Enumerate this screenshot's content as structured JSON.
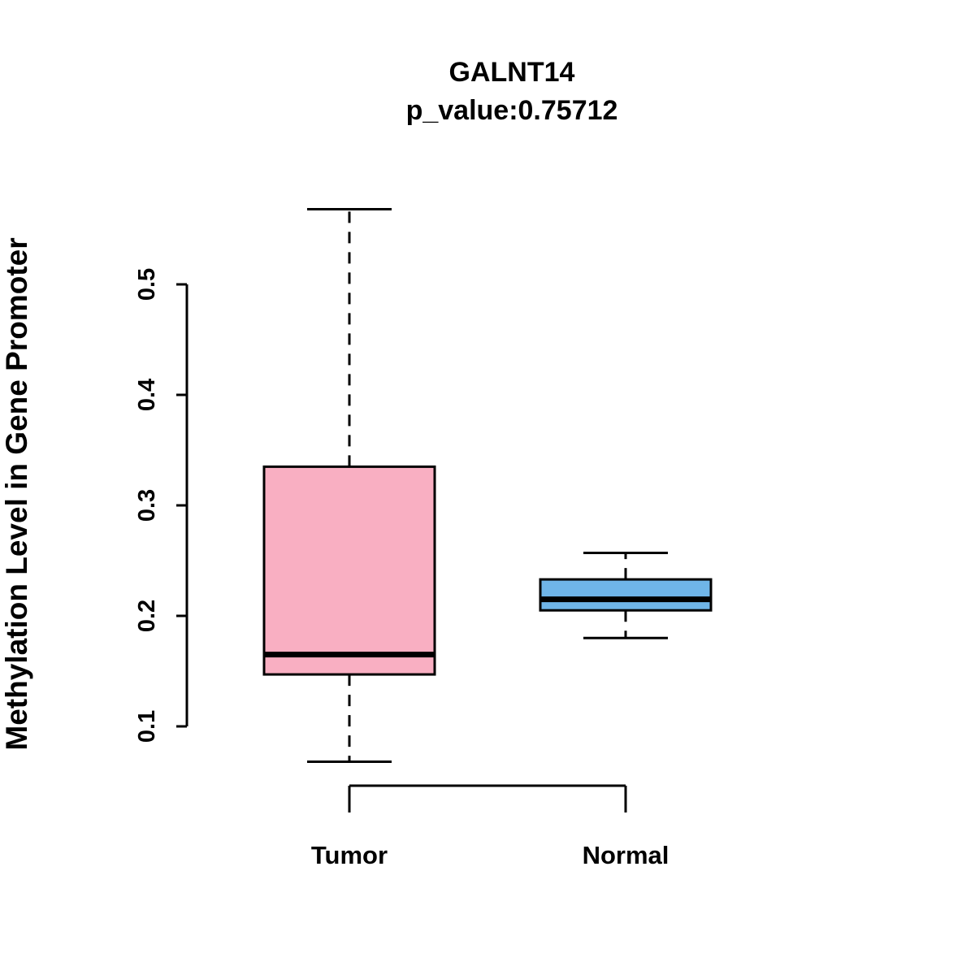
{
  "chart_data": {
    "type": "boxplot",
    "title": "GALNT14",
    "subtitle": "p_value:0.75712",
    "ylabel": "Methylation Level in Gene Promoter",
    "xlabel": "",
    "categories": [
      "Tumor",
      "Normal"
    ],
    "yticks": [
      0.1,
      0.2,
      0.3,
      0.4,
      0.5
    ],
    "ylim": [
      0.05,
      0.58
    ],
    "grid": false,
    "legend": "none",
    "series": [
      {
        "name": "Tumor",
        "min": 0.068,
        "q1": 0.147,
        "median": 0.165,
        "q3": 0.335,
        "max": 0.568,
        "color": "#F9AFC2"
      },
      {
        "name": "Normal",
        "min": 0.18,
        "q1": 0.205,
        "median": 0.215,
        "q3": 0.233,
        "max": 0.257,
        "color": "#6FB5E8"
      }
    ],
    "colors": {
      "box_border": "#000000",
      "median": "#000000",
      "tumor_fill": "#F9AFC2",
      "normal_fill": "#6FB5E8"
    }
  }
}
